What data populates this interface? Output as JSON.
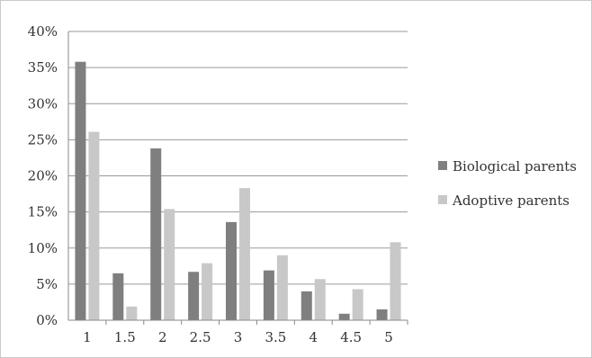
{
  "chart_data": {
    "type": "bar",
    "categories": [
      "1",
      "1.5",
      "2",
      "2.5",
      "3",
      "3.5",
      "4",
      "4.5",
      "5"
    ],
    "series": [
      {
        "name": "Biological parents",
        "color": "#7f7f7f",
        "values": [
          35.8,
          6.5,
          23.8,
          6.7,
          13.6,
          6.9,
          4.0,
          0.9,
          1.5
        ]
      },
      {
        "name": "Adoptive parents",
        "color": "#c8c8c8",
        "values": [
          26.1,
          1.9,
          15.4,
          7.9,
          18.3,
          9.0,
          5.7,
          4.3,
          10.8
        ]
      }
    ],
    "y_ticks": [
      "0%",
      "5%",
      "10%",
      "15%",
      "20%",
      "25%",
      "30%",
      "35%",
      "40%"
    ],
    "ylim": [
      0,
      40
    ],
    "y_unit": "%",
    "grid": true,
    "legend_position": "right",
    "title": "",
    "xlabel": "",
    "ylabel": ""
  }
}
